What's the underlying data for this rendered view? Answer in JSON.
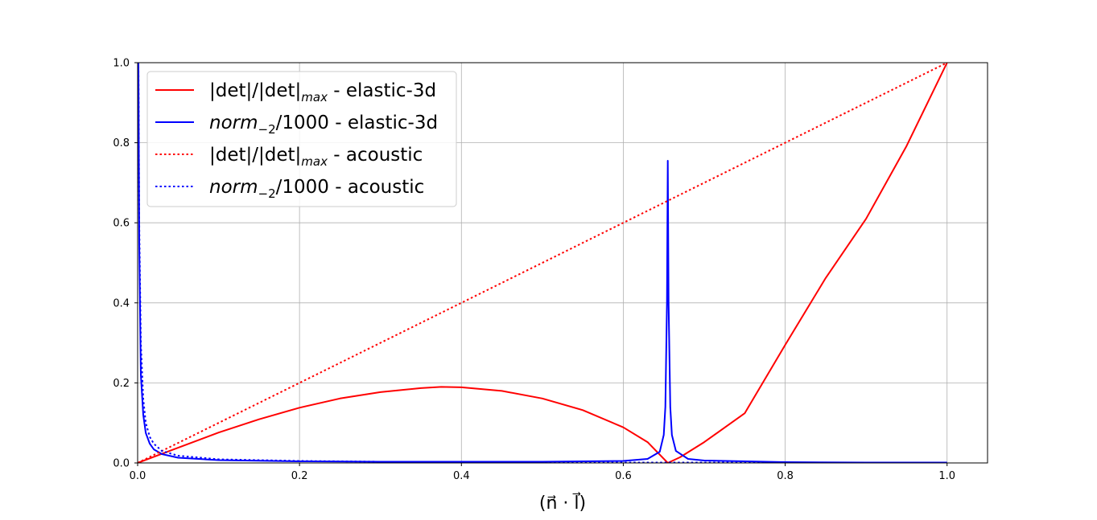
{
  "chart_data": {
    "type": "line",
    "title": "",
    "xlabel": "(n⃗ · l⃗)",
    "ylabel": "",
    "xlim": [
      0.0,
      1.05
    ],
    "ylim": [
      0.0,
      1.0
    ],
    "xticks": [
      "0.0",
      "0.2",
      "0.4",
      "0.6",
      "0.8",
      "1.0"
    ],
    "yticks": [
      "0.0",
      "0.2",
      "0.4",
      "0.6",
      "0.8",
      "1.0"
    ],
    "grid": true,
    "legend_position": "upper-left",
    "series": [
      {
        "name": "|det|/|det|max - elastic-3d",
        "label_main": "|det|/|det|",
        "label_sub": "max",
        "label_tail": " - elastic-3d",
        "color": "#ff0000",
        "style": "solid",
        "x": [
          0.0,
          0.05,
          0.1,
          0.15,
          0.2,
          0.25,
          0.3,
          0.35,
          0.375,
          0.4,
          0.45,
          0.5,
          0.55,
          0.6,
          0.63,
          0.655,
          0.67,
          0.7,
          0.75,
          0.8,
          0.85,
          0.9,
          0.95,
          1.0
        ],
        "y": [
          0.0,
          0.038,
          0.076,
          0.109,
          0.138,
          0.161,
          0.177,
          0.187,
          0.19,
          0.189,
          0.18,
          0.161,
          0.132,
          0.089,
          0.052,
          0.0,
          0.014,
          0.052,
          0.124,
          0.295,
          0.462,
          0.61,
          0.792,
          1.0
        ]
      },
      {
        "name": "norm-2/1000 - elastic-3d",
        "label_main": "norm",
        "label_sub": "−2",
        "label_tail": "/1000 - elastic-3d",
        "color": "#0000ff",
        "style": "solid",
        "x": [
          0.0,
          0.001,
          0.002,
          0.004,
          0.007,
          0.01,
          0.015,
          0.02,
          0.03,
          0.05,
          0.1,
          0.2,
          0.3,
          0.4,
          0.5,
          0.6,
          0.63,
          0.645,
          0.65,
          0.652,
          0.654,
          0.655,
          0.656,
          0.658,
          0.66,
          0.665,
          0.68,
          0.7,
          0.8,
          0.9,
          1.0
        ],
        "y": [
          1.0,
          1.0,
          0.55,
          0.22,
          0.12,
          0.075,
          0.048,
          0.034,
          0.022,
          0.013,
          0.007,
          0.004,
          0.003,
          0.003,
          0.003,
          0.005,
          0.01,
          0.028,
          0.07,
          0.14,
          0.4,
          0.755,
          0.4,
          0.14,
          0.07,
          0.03,
          0.01,
          0.006,
          0.002,
          0.001,
          0.001
        ]
      },
      {
        "name": "|det|/|det|max - acoustic",
        "label_main": "|det|/|det|",
        "label_sub": "max",
        "label_tail": " - acoustic",
        "color": "#ff0000",
        "style": "dotted",
        "x": [
          0.0,
          1.0
        ],
        "y": [
          0.0,
          1.0
        ]
      },
      {
        "name": "norm-2/1000 - acoustic",
        "label_main": "norm",
        "label_sub": "−2",
        "label_tail": "/1000 - acoustic",
        "color": "#0000ff",
        "style": "dotted",
        "x": [
          0.0,
          0.001,
          0.002,
          0.004,
          0.007,
          0.01,
          0.015,
          0.02,
          0.03,
          0.05,
          0.1,
          0.2,
          0.3,
          0.4,
          0.5,
          0.6,
          0.7,
          0.8,
          0.9,
          1.0
        ],
        "y": [
          1.0,
          1.0,
          0.6,
          0.3,
          0.16,
          0.1,
          0.065,
          0.048,
          0.03,
          0.018,
          0.009,
          0.005,
          0.003,
          0.002,
          0.002,
          0.001,
          0.001,
          0.001,
          0.001,
          0.001
        ]
      }
    ]
  }
}
